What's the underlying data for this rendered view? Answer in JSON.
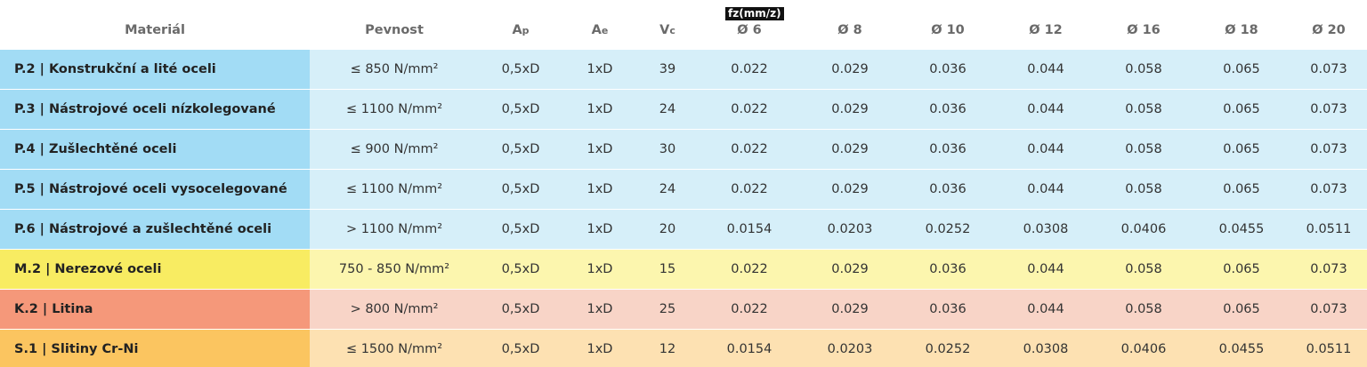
{
  "header": {
    "note": "fz(mm/z)",
    "columns": [
      {
        "text": "Materiál"
      },
      {
        "text": "Pevnost"
      },
      {
        "text": "A",
        "sub": "p"
      },
      {
        "text": "A",
        "sub": "e"
      },
      {
        "text": "V",
        "sub": "c"
      },
      {
        "text": "Ø 6"
      },
      {
        "text": "Ø 8"
      },
      {
        "text": "Ø 10"
      },
      {
        "text": "Ø 12"
      },
      {
        "text": "Ø 16"
      },
      {
        "text": "Ø 18"
      },
      {
        "text": "Ø 20"
      }
    ]
  },
  "rows": [
    [
      "P.2 | Konstrukční a lité oceli",
      "≤ 850 N/mm²",
      "0,5xD",
      "1xD",
      "39",
      "0.022",
      "0.029",
      "0.036",
      "0.044",
      "0.058",
      "0.065",
      "0.073"
    ],
    [
      "P.3 | Nástrojové oceli nízkolegované",
      "≤ 1100 N/mm²",
      "0,5xD",
      "1xD",
      "24",
      "0.022",
      "0.029",
      "0.036",
      "0.044",
      "0.058",
      "0.065",
      "0.073"
    ],
    [
      "P.4 | Zušlechtěné oceli",
      "≤ 900 N/mm²",
      "0,5xD",
      "1xD",
      "30",
      "0.022",
      "0.029",
      "0.036",
      "0.044",
      "0.058",
      "0.065",
      "0.073"
    ],
    [
      "P.5 | Nástrojové oceli vysocelegované",
      "≤ 1100 N/mm²",
      "0,5xD",
      "1xD",
      "24",
      "0.022",
      "0.029",
      "0.036",
      "0.044",
      "0.058",
      "0.065",
      "0.073"
    ],
    [
      "P.6 | Nástrojové a zušlechtěné oceli",
      "> 1100 N/mm²",
      "0,5xD",
      "1xD",
      "20",
      "0.0154",
      "0.0203",
      "0.0252",
      "0.0308",
      "0.0406",
      "0.0455",
      "0.0511"
    ],
    [
      "M.2 | Nerezové oceli",
      "750 - 850 N/mm²",
      "0,5xD",
      "1xD",
      "15",
      "0.022",
      "0.029",
      "0.036",
      "0.044",
      "0.058",
      "0.065",
      "0.073"
    ],
    [
      "K.2 | Litina",
      "> 800 N/mm²",
      "0,5xD",
      "1xD",
      "25",
      "0.022",
      "0.029",
      "0.036",
      "0.044",
      "0.058",
      "0.065",
      "0.073"
    ],
    [
      "S.1 | Slitiny Cr-Ni",
      "≤ 1500 N/mm²",
      "0,5xD",
      "1xD",
      "12",
      "0.0154",
      "0.0203",
      "0.0252",
      "0.0308",
      "0.0406",
      "0.0455",
      "0.0511"
    ]
  ]
}
